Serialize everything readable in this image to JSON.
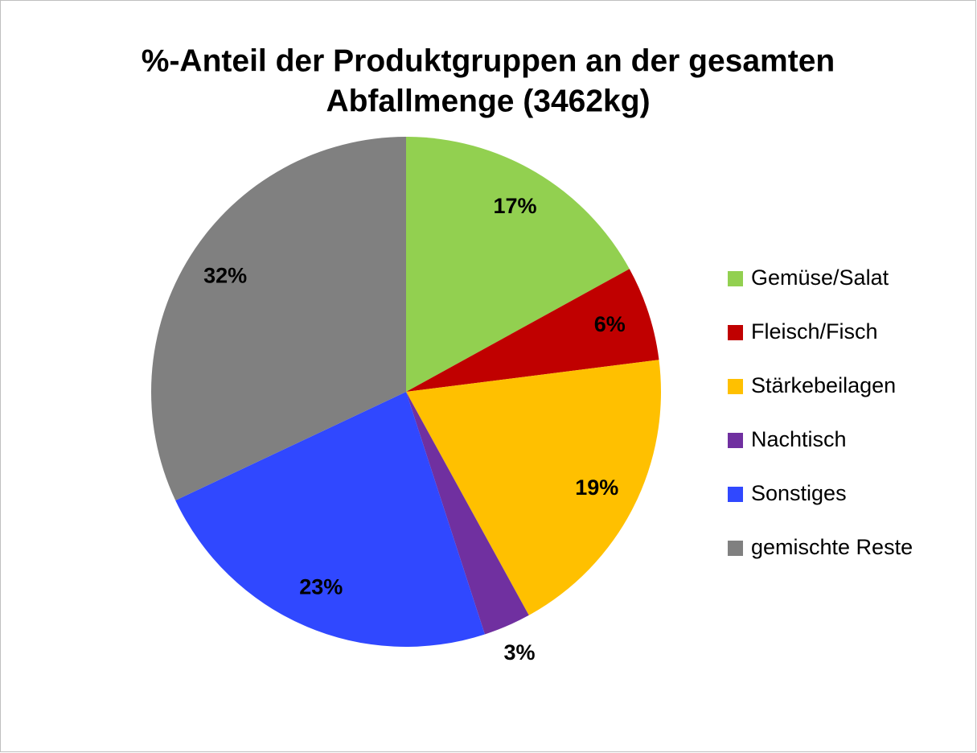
{
  "chart_data": {
    "type": "pie",
    "title": [
      "%-Anteil der Produktgruppen an der gesamten",
      "Abfallmenge (3462kg)"
    ],
    "categories": [
      "Gemüse/Salat",
      "Fleisch/Fisch",
      "Stärkebeilagen",
      "Nachtisch",
      "Sonstiges",
      "gemischte Reste"
    ],
    "values": [
      17,
      6,
      19,
      3,
      23,
      32
    ],
    "value_labels": [
      "17%",
      "6%",
      "19%",
      "3%",
      "23%",
      "32%"
    ],
    "colors": [
      "#92d050",
      "#c00000",
      "#ffc000",
      "#7030a0",
      "#3048ff",
      "#808080"
    ],
    "legend": "right"
  }
}
